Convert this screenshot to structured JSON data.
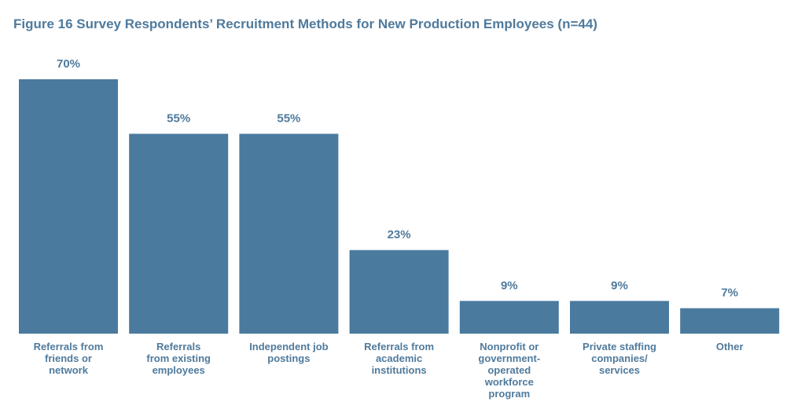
{
  "chart_data": {
    "type": "bar",
    "title": "Figure 16 Survey Respondents’ Recruitment Methods for New Production Employees (n=44)",
    "categories": [
      "Referrals from friends or network",
      "Referrals from existing employees",
      "Independent job postings",
      "Referrals from academic institutions",
      "Nonprofit or government-operated workforce program",
      "Private staffing companies/ services",
      "Other"
    ],
    "category_lines": [
      [
        "Referrals from",
        "friends or",
        "network"
      ],
      [
        "Referrals",
        "from existing",
        "employees"
      ],
      [
        "Independent job",
        "postings"
      ],
      [
        "Referrals from",
        "academic",
        "institutions"
      ],
      [
        "Nonprofit or",
        "government-",
        "operated",
        "workforce",
        "program"
      ],
      [
        "Private staffing",
        "companies/",
        "services"
      ],
      [
        "Other"
      ]
    ],
    "values": [
      70,
      55,
      55,
      23,
      9,
      9,
      7
    ],
    "value_labels": [
      "70%",
      "55%",
      "55%",
      "23%",
      "9%",
      "9%",
      "7%"
    ],
    "xlabel": "",
    "ylabel": "",
    "ylim": [
      0,
      70
    ],
    "grid": false,
    "bar_color": "#4a7a9e"
  }
}
